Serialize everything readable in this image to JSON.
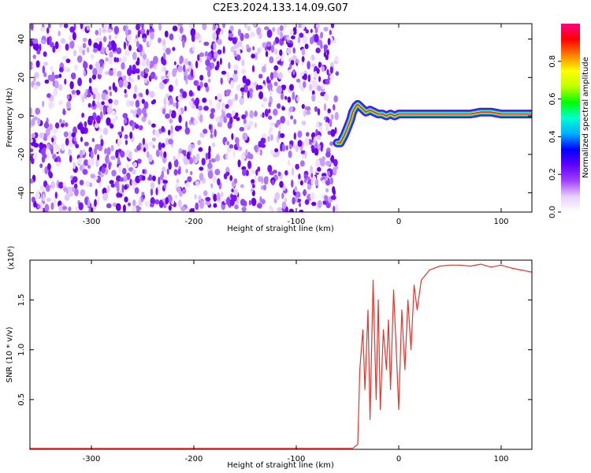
{
  "figure": {
    "title": "C2E3.2024.133.14.09.G07"
  },
  "chart_data": [
    {
      "type": "heatmap",
      "title": "",
      "xlabel": "Height of straight line (km)",
      "ylabel": "Frequency (Hz)",
      "xlim": [
        -360,
        130
      ],
      "ylim": [
        -50,
        48
      ],
      "xticks": [
        -300,
        -200,
        -100,
        0,
        100
      ],
      "yticks": [
        -40,
        -20,
        0,
        20,
        40
      ],
      "noise_region": {
        "x": [
          -360,
          -60
        ],
        "y": [
          -50,
          48
        ]
      },
      "signal_track": {
        "x": [
          -60,
          -57,
          -53,
          -50,
          -47,
          -45,
          -42,
          -40,
          -36,
          -32,
          -28,
          -24,
          -20,
          -16,
          -12,
          -8,
          -4,
          0,
          10,
          20,
          30,
          40,
          50,
          60,
          70,
          80,
          90,
          100,
          110,
          120,
          130
        ],
        "y": [
          -14,
          -14,
          -10,
          -6,
          -2,
          2,
          5,
          6,
          4,
          2,
          3,
          2,
          1,
          1,
          0,
          1,
          0,
          1,
          1,
          1,
          1,
          1,
          1,
          1,
          1,
          2,
          2,
          1,
          1,
          1,
          1
        ]
      },
      "colorbar": {
        "label": "Normalized spectral amplitude",
        "range": [
          0,
          1
        ],
        "ticks": [
          "0.0",
          "0.2",
          "0.4",
          "0.6",
          "0.8"
        ],
        "colors": [
          "#ffffff",
          "#e8d0ff",
          "#a040ff",
          "#6000ff",
          "#0000ff",
          "#00b0ff",
          "#00ffd0",
          "#00ff00",
          "#c0ff00",
          "#ffff00",
          "#ff8000",
          "#ff0000",
          "#ff0080"
        ]
      },
      "grid": false
    },
    {
      "type": "line",
      "title": "",
      "xlabel": "Height of straight line (km)",
      "ylabel": "SNR (10 * v/v)",
      "multiplier": "(x10⁴)",
      "xlim": [
        -360,
        130
      ],
      "ylim": [
        0,
        1.9
      ],
      "xticks": [
        -300,
        -200,
        -100,
        0,
        100
      ],
      "yticks": [
        "0.5",
        "1.0",
        "1.5"
      ],
      "series": [
        {
          "color": "#e8332b",
          "x": [
            -360,
            -300,
            -200,
            -100,
            -45,
            -40,
            -38,
            -35,
            -33,
            -30,
            -28,
            -25,
            -22,
            -20,
            -18,
            -15,
            -12,
            -10,
            -8,
            -5,
            -2,
            0,
            3,
            6,
            9,
            12,
            15,
            18,
            22,
            26,
            30,
            35,
            40,
            50,
            60,
            70,
            80,
            90,
            100,
            110,
            120,
            130
          ],
          "y": [
            0.01,
            0.01,
            0.01,
            0.01,
            0.01,
            0.05,
            0.8,
            1.2,
            0.6,
            1.4,
            0.3,
            1.7,
            0.5,
            1.5,
            0.4,
            1.2,
            0.8,
            1.3,
            0.6,
            1.6,
            0.9,
            0.4,
            1.4,
            0.8,
            1.5,
            1.0,
            1.65,
            1.4,
            1.7,
            1.75,
            1.8,
            1.82,
            1.84,
            1.85,
            1.85,
            1.84,
            1.86,
            1.83,
            1.85,
            1.82,
            1.8,
            1.78
          ]
        }
      ],
      "grid": false
    }
  ]
}
